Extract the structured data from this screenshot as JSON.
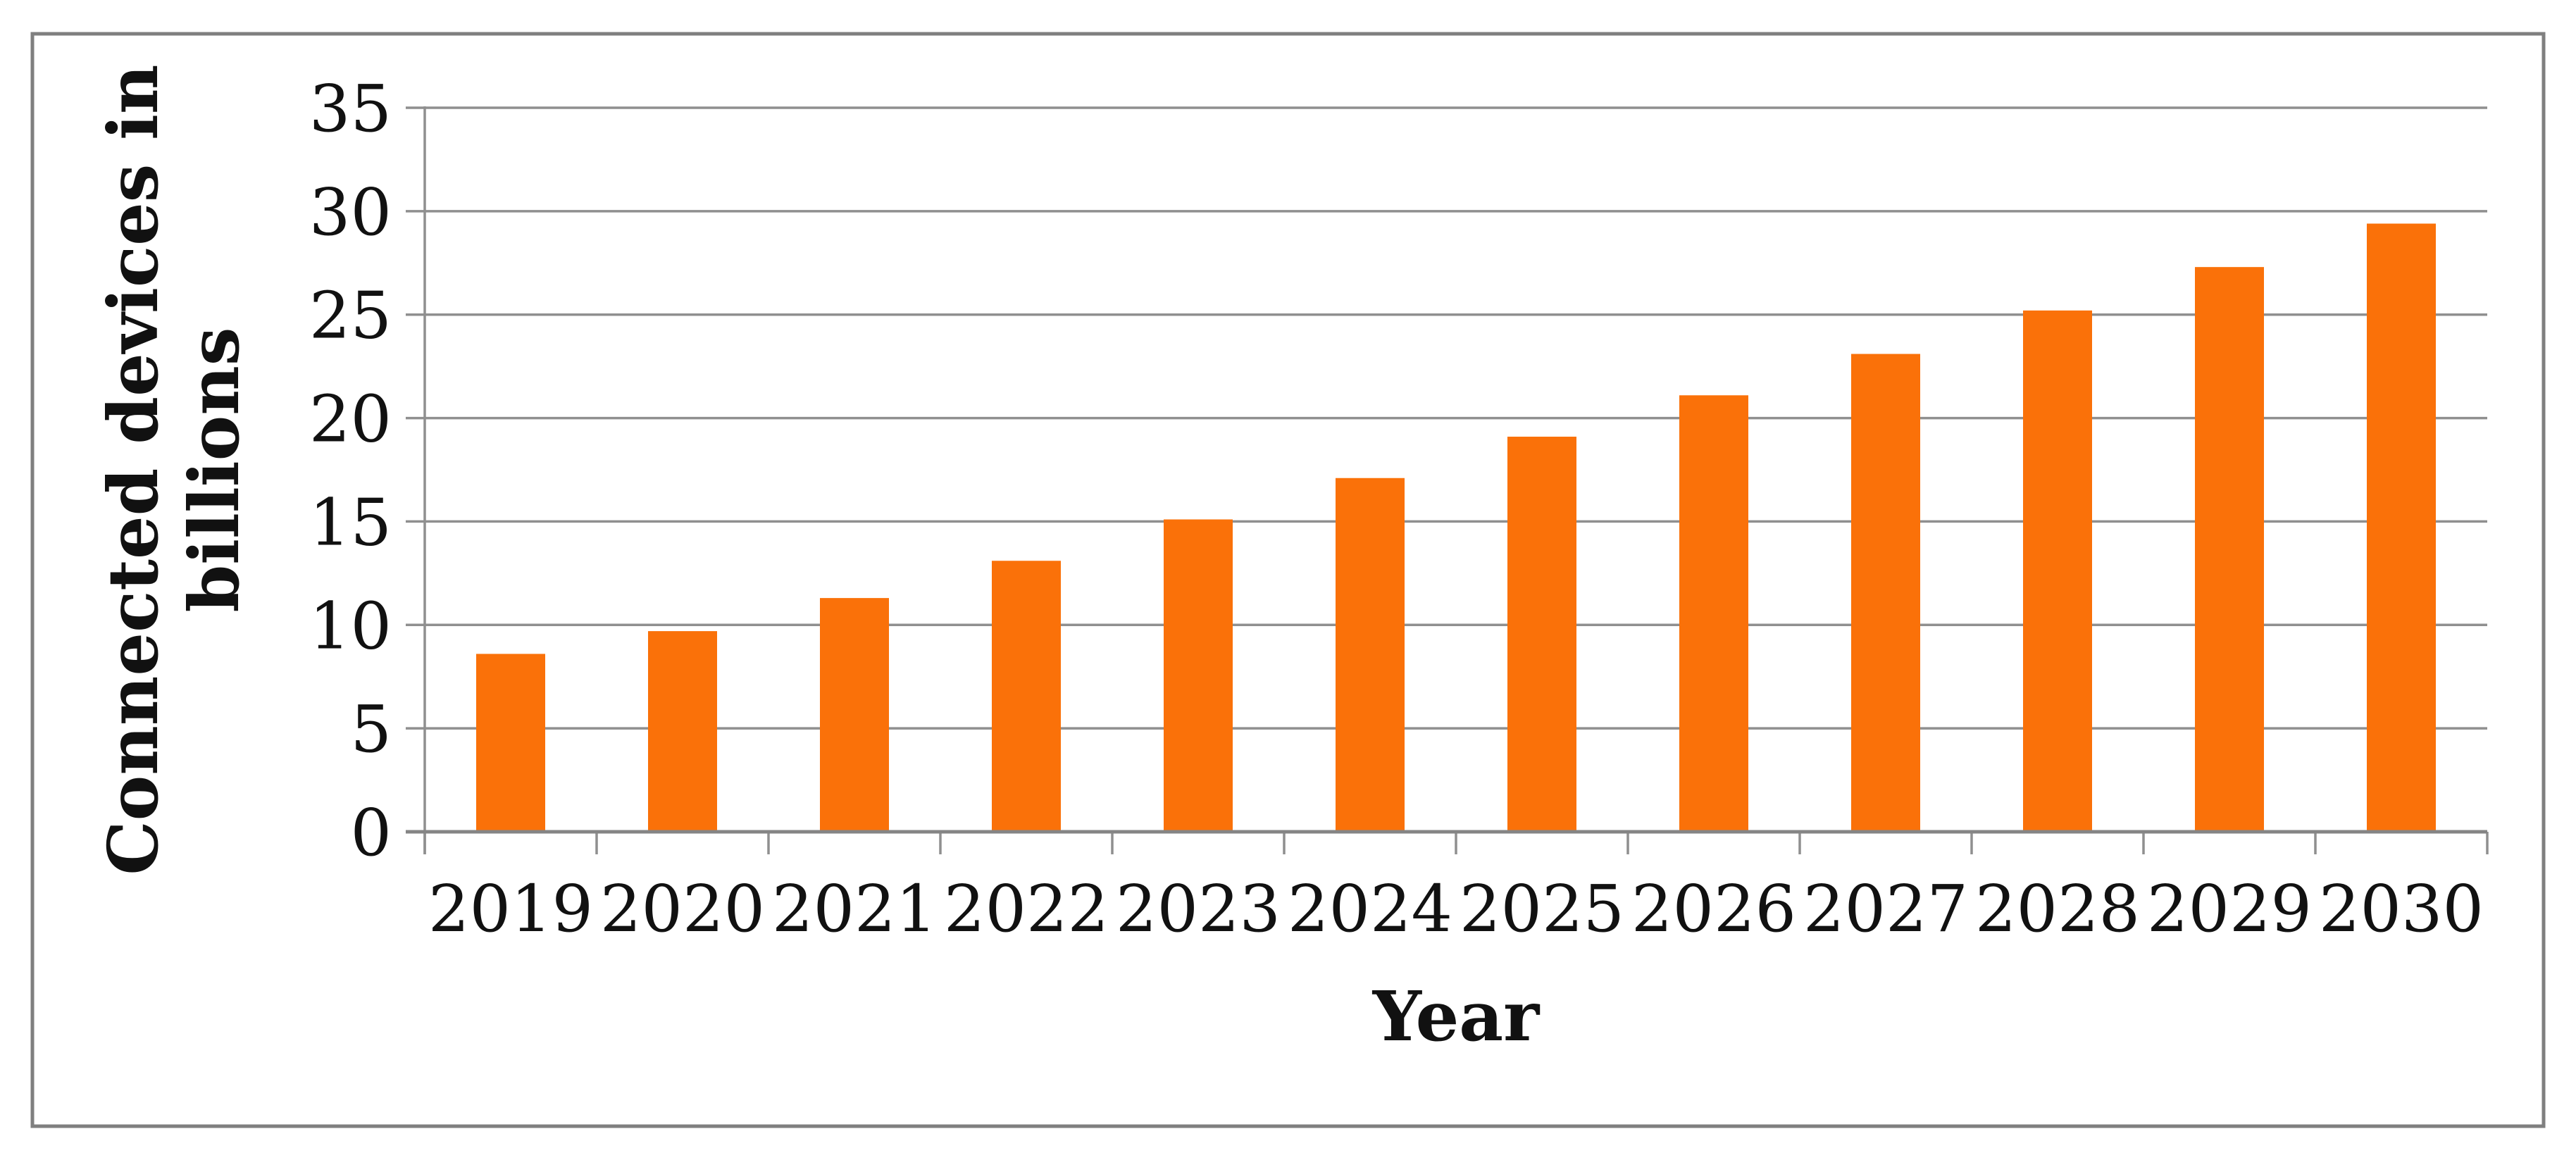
{
  "figure": {
    "background": "#ffffff",
    "border_color": "#7f7f7f"
  },
  "chart_data": {
    "type": "bar",
    "title": "",
    "xlabel": "Year",
    "ylabel": "Connected devices in billions",
    "ylabel_lines": [
      "Connected devices in",
      "billions"
    ],
    "categories": [
      "2019",
      "2020",
      "2021",
      "2022",
      "2023",
      "2024",
      "2025",
      "2026",
      "2027",
      "2028",
      "2029",
      "2030"
    ],
    "values": [
      8.6,
      9.7,
      11.3,
      13.1,
      15.1,
      17.1,
      19.1,
      21.1,
      23.1,
      25.2,
      27.3,
      29.4
    ],
    "ylim": [
      0,
      35
    ],
    "yticks": [
      0,
      5,
      10,
      15,
      20,
      25,
      30,
      35
    ],
    "grid": true,
    "legend_position": "none",
    "bar_color": "#FA7109",
    "grid_color": "#8f8f8f",
    "axis_color": "#858585",
    "text_color": "#111111"
  }
}
